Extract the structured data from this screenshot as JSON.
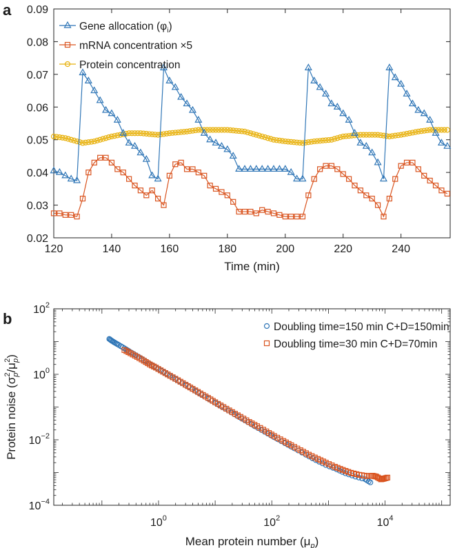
{
  "chart_data": [
    {
      "panel": "a",
      "type": "line",
      "xlabel": "Time (min)",
      "ylabel": "",
      "xlim": [
        120,
        257
      ],
      "ylim": [
        0.02,
        0.09
      ],
      "xticks": [
        120,
        140,
        160,
        180,
        200,
        220,
        240
      ],
      "xtick_labels": [
        "120",
        "140",
        "160",
        "180",
        "200",
        "220",
        "240"
      ],
      "yticks": [
        0.02,
        0.03,
        0.04,
        0.05,
        0.06,
        0.07,
        0.08,
        0.09
      ],
      "ytick_labels": [
        "0.02",
        "0.03",
        "0.04",
        "0.05",
        "0.06",
        "0.07",
        "0.08",
        "0.09"
      ],
      "legend_position": "top-left",
      "grid": false,
      "series": [
        {
          "name": "Gene allocation (φ",
          "name_sub": "i",
          "name_close": ")",
          "marker": "triangle",
          "color": "#2e75b6",
          "x": [
            120,
            122,
            124,
            126,
            128,
            130,
            132,
            134,
            136,
            138,
            140,
            142,
            144,
            146,
            148,
            150,
            152,
            154,
            156,
            158,
            160,
            162,
            164,
            166,
            168,
            170,
            172,
            174,
            176,
            178,
            180,
            182,
            184,
            186,
            188,
            190,
            192,
            194,
            196,
            198,
            200,
            202,
            204,
            206,
            208,
            210,
            212,
            214,
            216,
            218,
            220,
            222,
            224,
            226,
            228,
            230,
            232,
            234,
            236,
            238,
            240,
            242,
            244,
            246,
            248,
            250,
            252,
            254,
            256
          ],
          "y": [
            0.0405,
            0.04,
            0.039,
            0.038,
            0.0375,
            0.0705,
            0.068,
            0.065,
            0.062,
            0.059,
            0.058,
            0.056,
            0.052,
            0.049,
            0.048,
            0.046,
            0.044,
            0.039,
            0.038,
            0.072,
            0.068,
            0.066,
            0.063,
            0.061,
            0.059,
            0.056,
            0.052,
            0.05,
            0.049,
            0.048,
            0.047,
            0.045,
            0.041,
            0.041,
            0.041,
            0.041,
            0.041,
            0.041,
            0.041,
            0.041,
            0.041,
            0.04,
            0.038,
            0.038,
            0.072,
            0.068,
            0.066,
            0.064,
            0.061,
            0.06,
            0.058,
            0.056,
            0.052,
            0.049,
            0.048,
            0.046,
            0.043,
            0.038,
            0.072,
            0.069,
            0.067,
            0.064,
            0.061,
            0.059,
            0.058,
            0.056,
            0.052,
            0.049,
            0.048
          ]
        },
        {
          "name": "mRNA concentration ×5",
          "marker": "square",
          "color": "#d9531e",
          "x": [
            120,
            122,
            124,
            126,
            128,
            130,
            132,
            134,
            136,
            138,
            140,
            142,
            144,
            146,
            148,
            150,
            152,
            154,
            156,
            158,
            160,
            162,
            164,
            166,
            168,
            170,
            172,
            174,
            176,
            178,
            180,
            182,
            184,
            186,
            188,
            190,
            192,
            194,
            196,
            198,
            200,
            202,
            204,
            206,
            208,
            210,
            212,
            214,
            216,
            218,
            220,
            222,
            224,
            226,
            228,
            230,
            232,
            234,
            236,
            238,
            240,
            242,
            244,
            246,
            248,
            250,
            252,
            254,
            256
          ],
          "y": [
            0.0275,
            0.0275,
            0.027,
            0.027,
            0.0265,
            0.032,
            0.04,
            0.043,
            0.0445,
            0.0445,
            0.043,
            0.041,
            0.04,
            0.038,
            0.036,
            0.0345,
            0.033,
            0.0345,
            0.032,
            0.03,
            0.039,
            0.0425,
            0.043,
            0.041,
            0.041,
            0.04,
            0.039,
            0.036,
            0.035,
            0.034,
            0.033,
            0.031,
            0.028,
            0.028,
            0.028,
            0.0275,
            0.0285,
            0.028,
            0.0275,
            0.027,
            0.0265,
            0.0265,
            0.0265,
            0.0265,
            0.033,
            0.038,
            0.041,
            0.042,
            0.042,
            0.041,
            0.0395,
            0.038,
            0.036,
            0.0345,
            0.033,
            0.032,
            0.03,
            0.0265,
            0.032,
            0.038,
            0.042,
            0.043,
            0.043,
            0.041,
            0.039,
            0.0375,
            0.036,
            0.0345,
            0.0335
          ]
        },
        {
          "name": "Protein concentration",
          "marker": "circle",
          "color": "#e8b10c",
          "x": [
            120,
            124,
            128,
            130,
            134,
            140,
            146,
            150,
            156,
            160,
            166,
            170,
            176,
            180,
            186,
            190,
            196,
            200,
            206,
            210,
            216,
            220,
            226,
            232,
            236,
            240,
            246,
            250,
            256
          ],
          "y": [
            0.051,
            0.0505,
            0.0495,
            0.049,
            0.0495,
            0.051,
            0.052,
            0.052,
            0.0515,
            0.052,
            0.0525,
            0.053,
            0.053,
            0.053,
            0.0525,
            0.0515,
            0.05,
            0.0495,
            0.049,
            0.0495,
            0.05,
            0.051,
            0.0515,
            0.0515,
            0.051,
            0.0515,
            0.0525,
            0.053,
            0.053
          ]
        }
      ]
    },
    {
      "panel": "b",
      "type": "scatter",
      "xlabel": "Mean protein number (μ",
      "xlabel_sub": "p",
      "xlabel_close": ")",
      "ylabel": "Protein noise (σ",
      "ylabel_sub": "p",
      "ylabel_sup": "2",
      "ylabel_mid": "/μ",
      "ylabel_close": ")",
      "xscale": "log",
      "yscale": "log",
      "xlim_log10": [
        -1.85,
        5.15
      ],
      "ylim": [
        0.0001,
        100
      ],
      "xticks": [
        1,
        100,
        10000
      ],
      "xtick_labels": [
        {
          "base": "10",
          "exp": "0"
        },
        {
          "base": "10",
          "exp": "2"
        },
        {
          "base": "10",
          "exp": "4"
        }
      ],
      "yticks": [
        0.0001,
        0.01,
        1,
        100
      ],
      "ytick_labels": [
        {
          "base": "10",
          "exp": "−4"
        },
        {
          "base": "10",
          "exp": "−2"
        },
        {
          "base": "10",
          "exp": "0"
        },
        {
          "base": "10",
          "exp": "2"
        }
      ],
      "legend_position": "top-right",
      "grid": false,
      "series": [
        {
          "name": "Doubling time=150 min C+D=150min",
          "marker": "circle",
          "color": "#2e75b6",
          "x": [
            0.135,
            0.15,
            0.17,
            0.2,
            0.25,
            0.3,
            0.4,
            0.55,
            0.75,
            1.0,
            1.4,
            2,
            3,
            4.5,
            6.5,
            10,
            15,
            22,
            33,
            50,
            75,
            110,
            170,
            250,
            400,
            600,
            900,
            1400,
            2000,
            3000,
            4500,
            5500
          ],
          "y": [
            12,
            10.5,
            9.2,
            7.8,
            6.2,
            5.1,
            3.8,
            2.7,
            1.95,
            1.45,
            1.02,
            0.71,
            0.47,
            0.31,
            0.21,
            0.135,
            0.09,
            0.06,
            0.04,
            0.026,
            0.0175,
            0.012,
            0.0079,
            0.0055,
            0.0035,
            0.0024,
            0.0017,
            0.00125,
            0.00095,
            0.00075,
            0.00062,
            0.0005
          ]
        },
        {
          "name": "Doubling time=30 min C+D=70min",
          "marker": "square",
          "color": "#d9531e",
          "x": [
            0.25,
            0.32,
            0.42,
            0.55,
            0.7,
            0.9,
            1.2,
            1.6,
            2.2,
            3,
            4,
            5.5,
            7.5,
            10,
            14,
            20,
            28,
            40,
            55,
            80,
            110,
            160,
            220,
            320,
            450,
            650,
            900,
            1300,
            1800,
            2500,
            3500,
            4800,
            6000,
            7000,
            8500,
            9500,
            11000
          ],
          "y": [
            5.5,
            4.4,
            3.4,
            2.6,
            2.0,
            1.6,
            1.2,
            0.9,
            0.66,
            0.48,
            0.36,
            0.26,
            0.19,
            0.14,
            0.1,
            0.07,
            0.05,
            0.035,
            0.026,
            0.018,
            0.013,
            0.0092,
            0.0068,
            0.0048,
            0.0035,
            0.0026,
            0.002,
            0.0015,
            0.0012,
            0.00098,
            0.00085,
            0.00078,
            0.0008,
            0.00075,
            0.00062,
            0.00065,
            0.0007
          ]
        }
      ]
    }
  ],
  "panels": {
    "a_label": "a",
    "b_label": "b"
  }
}
